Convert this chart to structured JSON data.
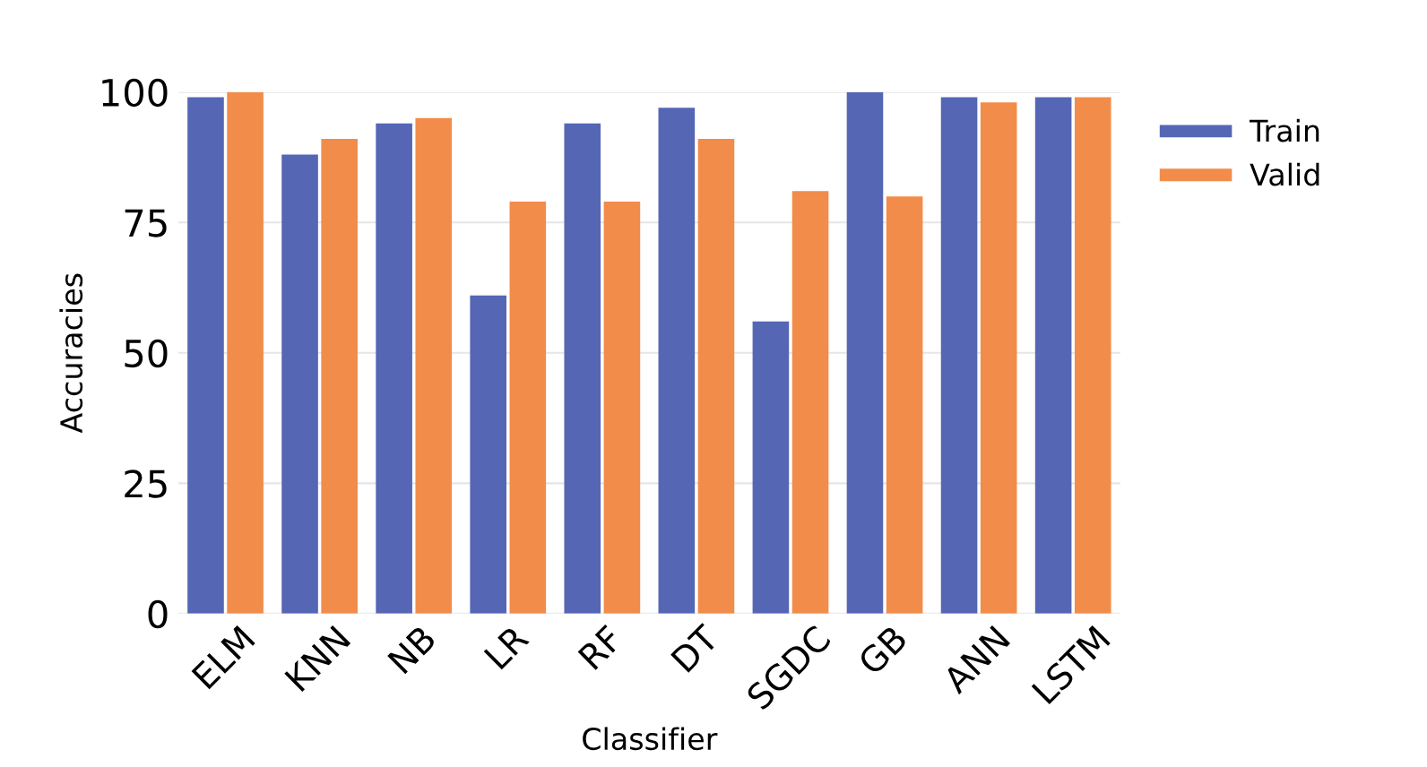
{
  "chart_data": {
    "type": "bar",
    "xlabel": "Classifier",
    "ylabel": "Accuracies",
    "categories": [
      "ELM",
      "KNN",
      "NB",
      "LR",
      "RF",
      "DT",
      "SGDC",
      "GB",
      "ANN",
      "LSTM"
    ],
    "series": [
      {
        "name": "Train",
        "color": "#5566b5",
        "values": [
          99,
          88,
          94,
          61,
          94,
          97,
          56,
          100,
          99,
          99
        ]
      },
      {
        "name": "Valid",
        "color": "#f28c4a",
        "values": [
          100,
          91,
          95,
          79,
          79,
          91,
          81,
          80,
          98,
          99
        ]
      }
    ],
    "ylim": [
      0,
      100
    ],
    "yticks": [
      0,
      25,
      50,
      75,
      100
    ],
    "grid": "y",
    "legend": "top right"
  }
}
